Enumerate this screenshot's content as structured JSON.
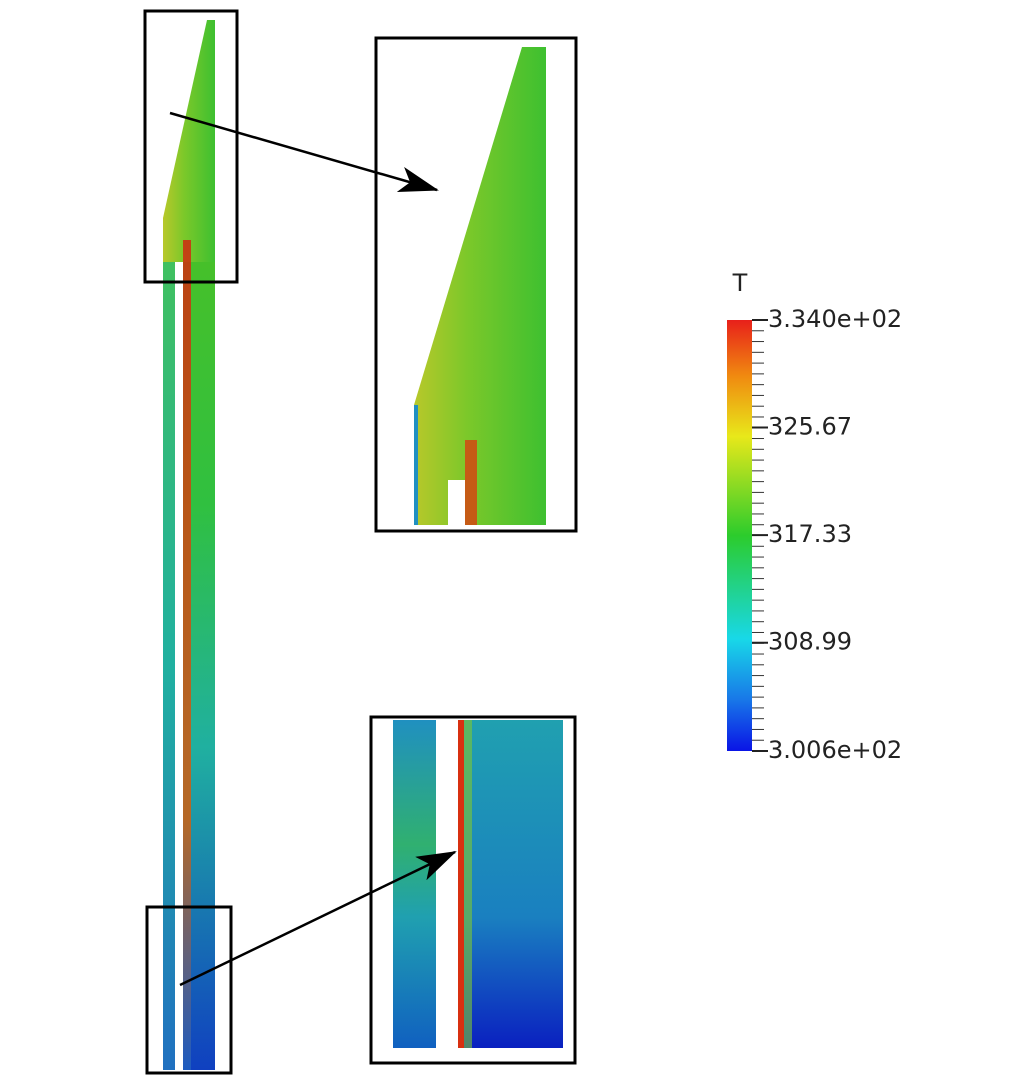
{
  "colorbar": {
    "title": "T",
    "range": [
      300.6,
      334.0
    ],
    "ticks": [
      {
        "value": 334.0,
        "label": "3.340e+02"
      },
      325.67,
      317.33,
      308.99,
      {
        "value": 300.6,
        "label": "3.006e+02"
      }
    ]
  }
}
